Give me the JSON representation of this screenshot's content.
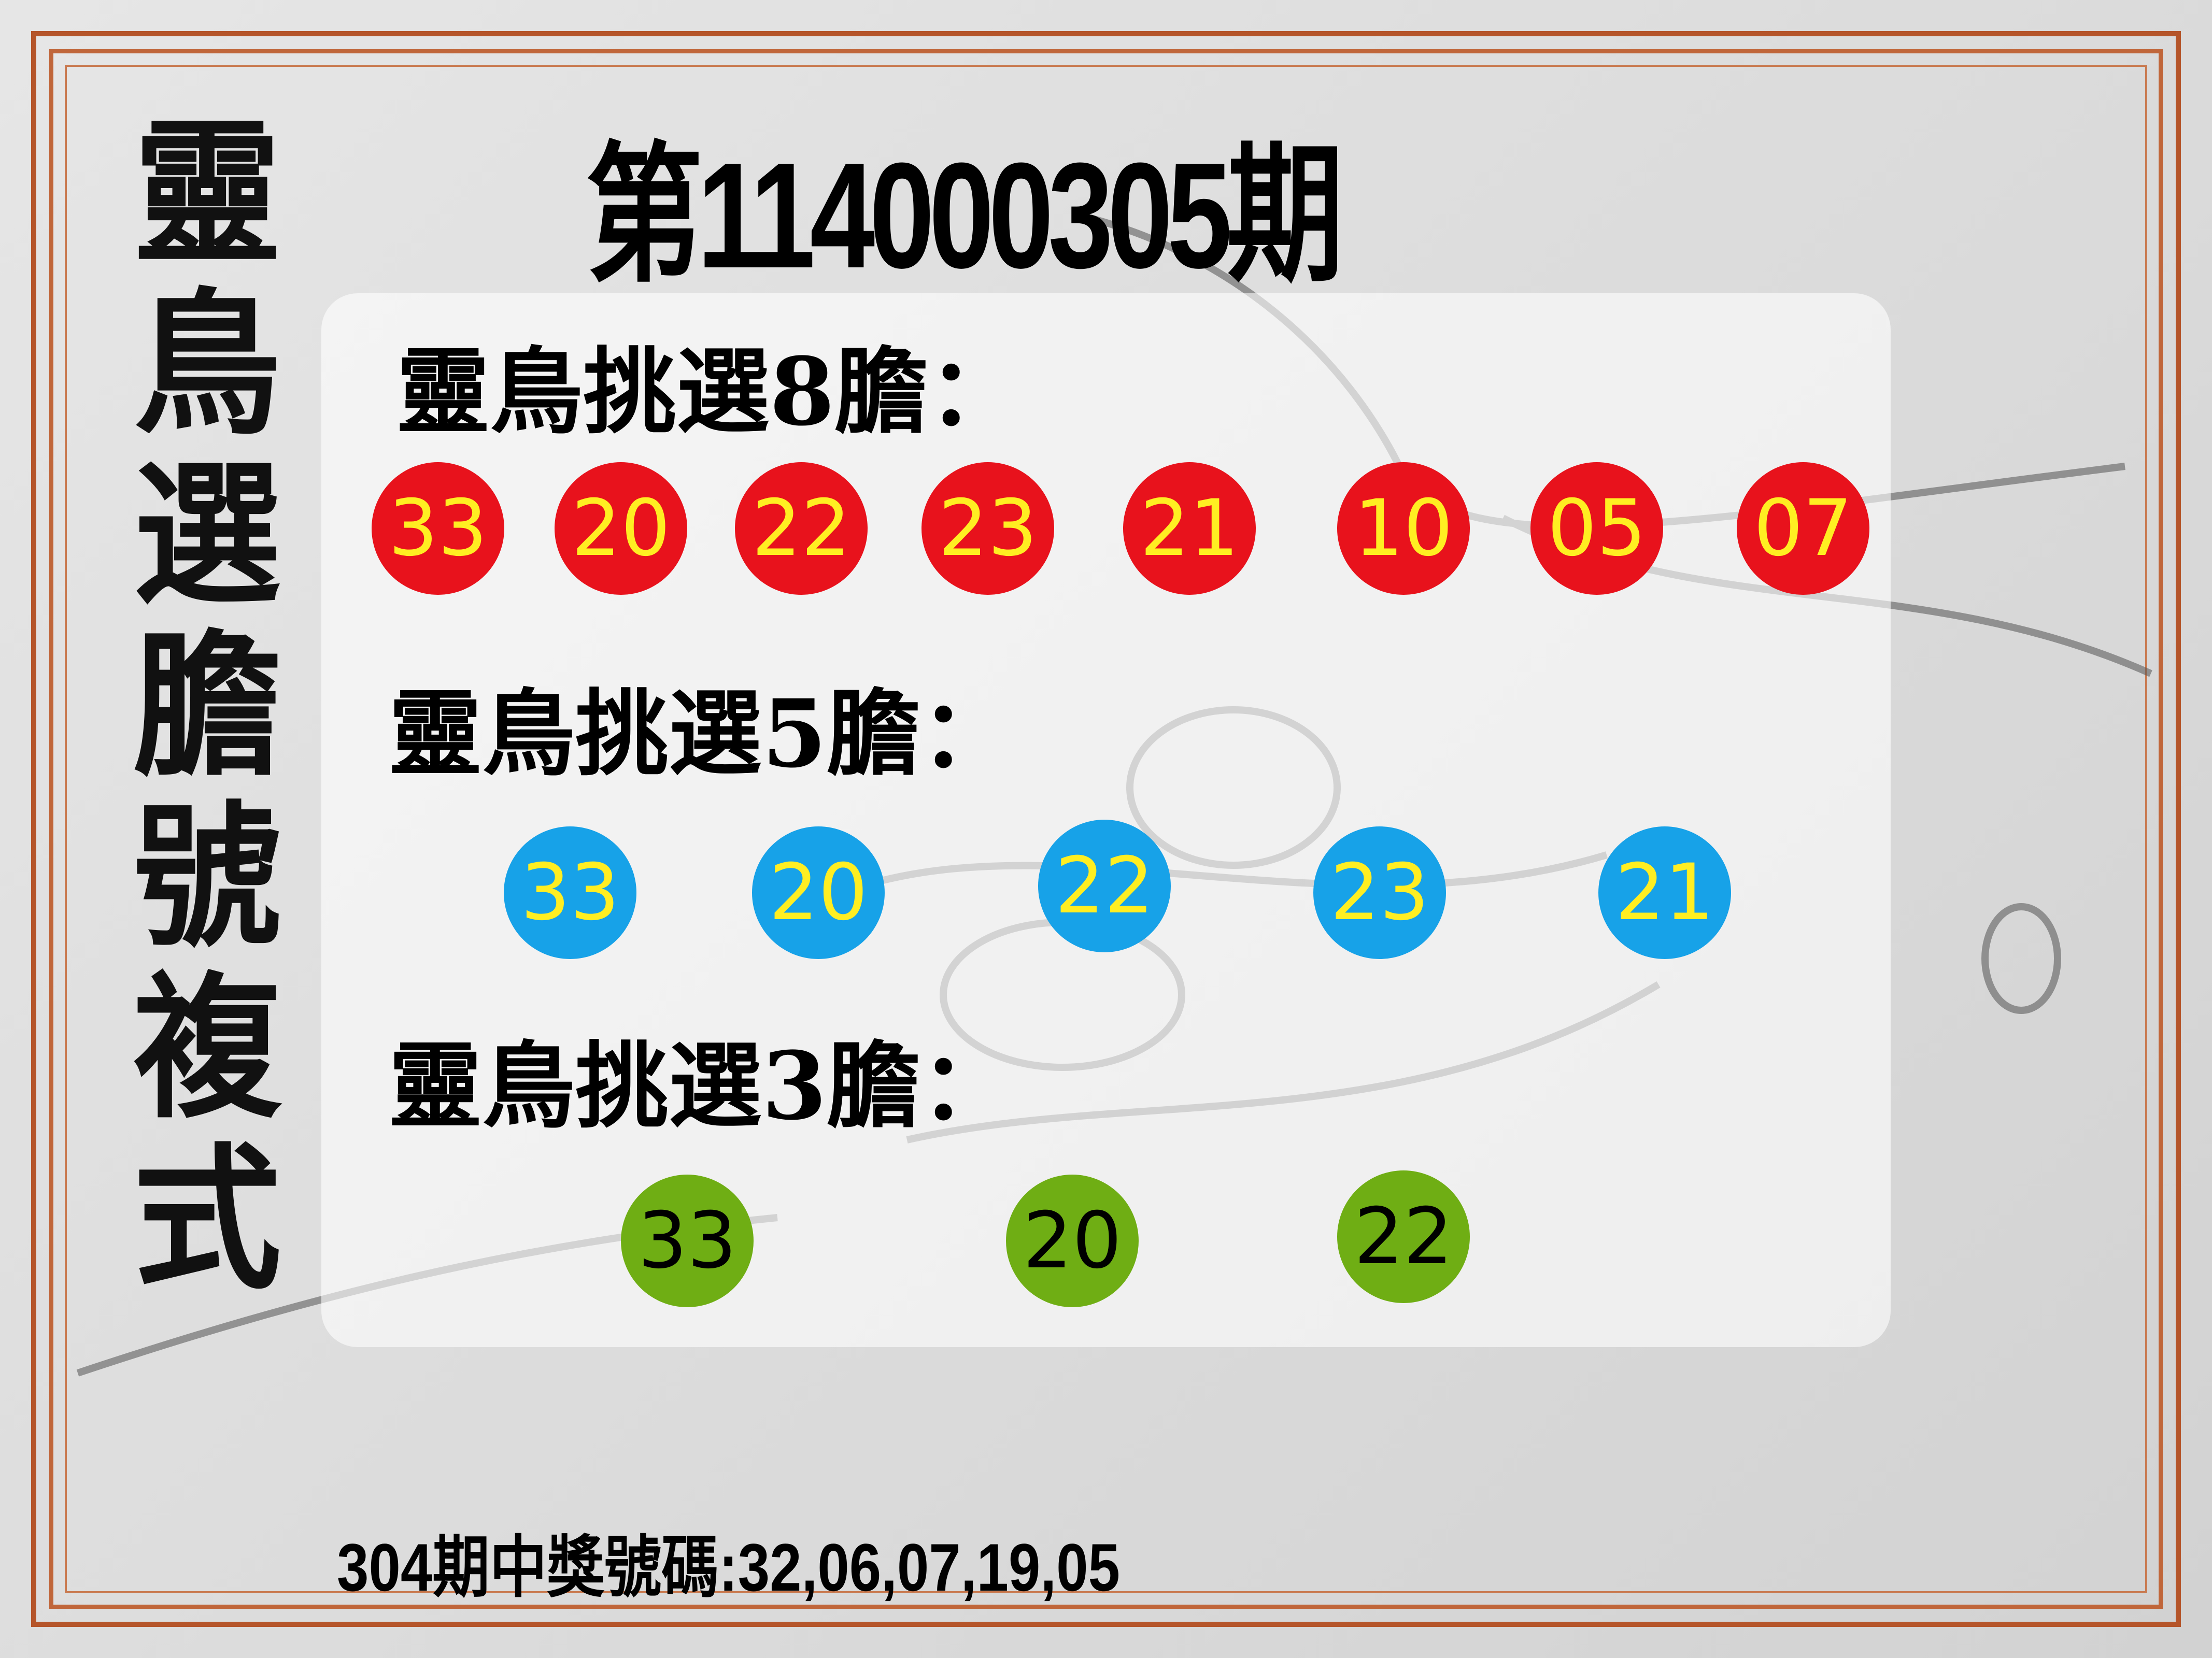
{
  "side_title": [
    "靈",
    "鳥",
    "選",
    "膽",
    "號",
    "複",
    "式"
  ],
  "title": "第114000305期",
  "groups": [
    {
      "heading": "靈鳥挑選8膽：",
      "color": "#e8121c",
      "numbers": [
        "33",
        "20",
        "22",
        "23",
        "21",
        "10",
        "05",
        "07"
      ]
    },
    {
      "heading": "靈鳥挑選5膽：",
      "color": "#17a2e8",
      "numbers": [
        "33",
        "20",
        "22",
        "23",
        "21"
      ]
    },
    {
      "heading": "靈鳥挑選3膽：",
      "color": "#6fae14",
      "numbers": [
        "33",
        "20",
        "22"
      ]
    }
  ],
  "previous_result": "304期中獎號碼:32,06,07,19,05",
  "colors": {
    "frame": "#b5552a",
    "ball_text": "#ffee22"
  }
}
